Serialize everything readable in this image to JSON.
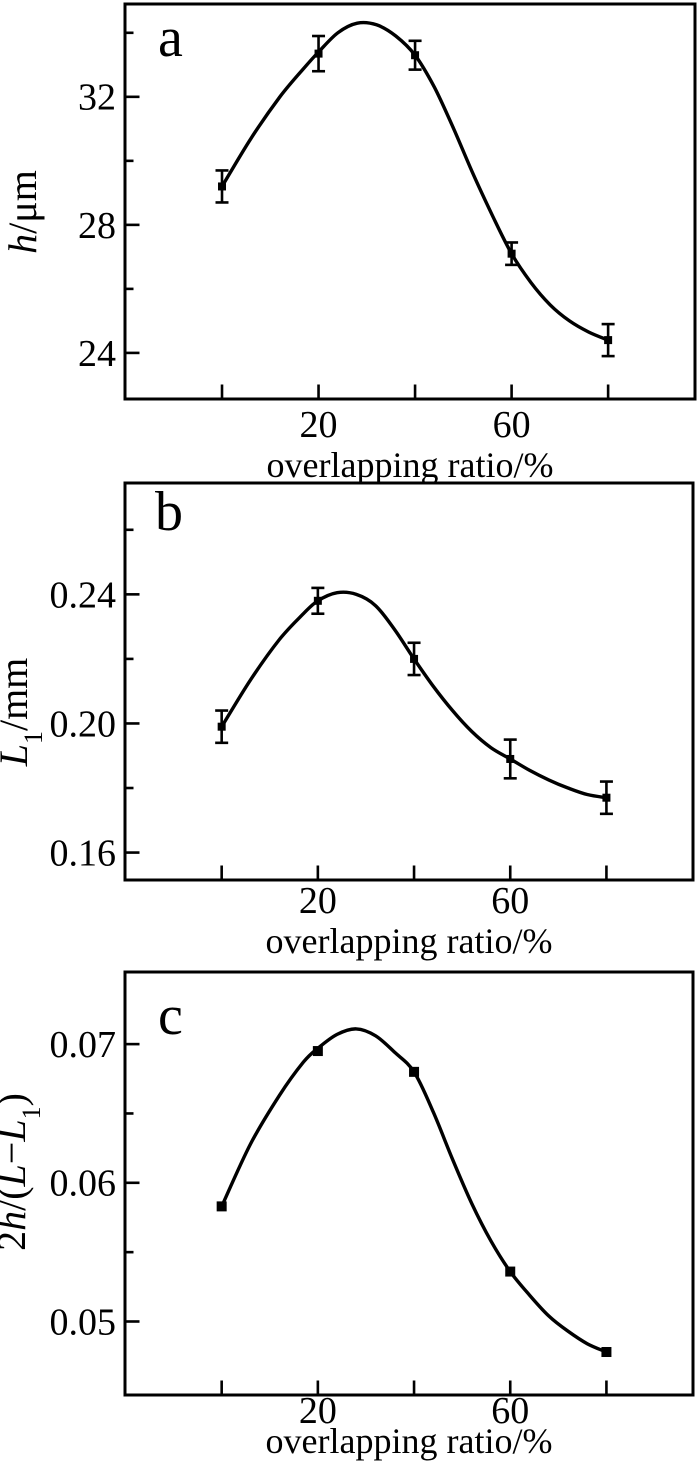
{
  "figure": {
    "background": "#ffffff",
    "ink_color": "#000000",
    "xlabel": "overlapping ratio/%",
    "x_axis_values": [
      0,
      20,
      40,
      60,
      80
    ],
    "x_axis_labeled_values": [
      20,
      60
    ]
  },
  "chart_data": [
    {
      "type": "line",
      "panel_label": "a",
      "xlabel": "overlapping ratio/%",
      "ylabel": "h/μm",
      "ylabel_parts": [
        [
          "i",
          "h"
        ],
        [
          "r",
          "/μm"
        ]
      ],
      "x": [
        0,
        20,
        40,
        60,
        80
      ],
      "y": [
        29.2,
        33.35,
        33.3,
        27.1,
        24.4
      ],
      "yerr": [
        0.5,
        0.55,
        0.45,
        0.35,
        0.5
      ],
      "marker": "square",
      "has_error_bars": true,
      "grid": false,
      "legend": null,
      "xlim": [
        -20.1,
        98
      ],
      "ylim": [
        22.56,
        34.9
      ],
      "yticks": [
        {
          "v": 24,
          "label": "24"
        },
        {
          "v": 28,
          "label": "28"
        },
        {
          "v": 32,
          "label": "32"
        }
      ],
      "yticks_minor": [
        26,
        30,
        34
      ],
      "xticks": [
        {
          "v": 0,
          "label": ""
        },
        {
          "v": 20,
          "label": "20"
        },
        {
          "v": 40,
          "label": ""
        },
        {
          "v": 60,
          "label": "60"
        },
        {
          "v": 80,
          "label": ""
        }
      ],
      "curve": [
        [
          0,
          29.2
        ],
        [
          6,
          30.7
        ],
        [
          12,
          32.0
        ],
        [
          17,
          32.9
        ],
        [
          20,
          33.4
        ],
        [
          24,
          34.0
        ],
        [
          28,
          34.3
        ],
        [
          32,
          34.25
        ],
        [
          36,
          33.9
        ],
        [
          40,
          33.3
        ],
        [
          44,
          32.3
        ],
        [
          48,
          31.0
        ],
        [
          52,
          29.6
        ],
        [
          56,
          28.3
        ],
        [
          60,
          27.1
        ],
        [
          64,
          26.2
        ],
        [
          68,
          25.5
        ],
        [
          72,
          25.0
        ],
        [
          76,
          24.65
        ],
        [
          80,
          24.4
        ]
      ]
    },
    {
      "type": "line",
      "panel_label": "b",
      "xlabel": "overlapping ratio/%",
      "ylabel": "L1/mm",
      "ylabel_parts": [
        [
          "i",
          "L"
        ],
        [
          "sub",
          "1"
        ],
        [
          "r",
          "/mm"
        ]
      ],
      "x": [
        0,
        20,
        40,
        60,
        80
      ],
      "y": [
        0.199,
        0.238,
        0.22,
        0.189,
        0.177
      ],
      "yerr": [
        0.005,
        0.004,
        0.005,
        0.006,
        0.005
      ],
      "marker": "square",
      "has_error_bars": true,
      "grid": false,
      "legend": null,
      "xlim": [
        -20.1,
        98
      ],
      "ylim": [
        0.1515,
        0.2745
      ],
      "yticks": [
        {
          "v": 0.16,
          "label": "0.16"
        },
        {
          "v": 0.2,
          "label": "0.20"
        },
        {
          "v": 0.24,
          "label": "0.24"
        }
      ],
      "yticks_minor": [
        0.18,
        0.22,
        0.26
      ],
      "xticks": [
        {
          "v": 0,
          "label": ""
        },
        {
          "v": 20,
          "label": "20"
        },
        {
          "v": 40,
          "label": ""
        },
        {
          "v": 60,
          "label": "60"
        },
        {
          "v": 80,
          "label": ""
        }
      ],
      "curve": [
        [
          0,
          0.199
        ],
        [
          6,
          0.2135
        ],
        [
          12,
          0.226
        ],
        [
          17,
          0.234
        ],
        [
          20,
          0.238
        ],
        [
          24,
          0.2405
        ],
        [
          28,
          0.24
        ],
        [
          32,
          0.2365
        ],
        [
          36,
          0.229
        ],
        [
          40,
          0.22
        ],
        [
          44,
          0.2115
        ],
        [
          48,
          0.204
        ],
        [
          52,
          0.1975
        ],
        [
          56,
          0.1925
        ],
        [
          60,
          0.189
        ],
        [
          64,
          0.1855
        ],
        [
          68,
          0.1825
        ],
        [
          72,
          0.18
        ],
        [
          76,
          0.178
        ],
        [
          80,
          0.177
        ]
      ]
    },
    {
      "type": "line",
      "panel_label": "c",
      "xlabel": "overlapping ratio/%",
      "ylabel": "2h/(L−L1)",
      "ylabel_parts": [
        [
          "r",
          "2"
        ],
        [
          "i",
          "h"
        ],
        [
          "r",
          "/("
        ],
        [
          "i",
          "L"
        ],
        [
          "r",
          "−"
        ],
        [
          "i",
          "L"
        ],
        [
          "sub",
          "1"
        ],
        [
          "r",
          ")"
        ]
      ],
      "x": [
        0,
        20,
        40,
        60,
        80
      ],
      "y": [
        0.0583,
        0.0695,
        0.068,
        0.0536,
        0.0478
      ],
      "yerr": null,
      "marker": "square",
      "has_error_bars": false,
      "grid": false,
      "legend": null,
      "xlim": [
        -20.1,
        98
      ],
      "ylim": [
        0.0447,
        0.0752
      ],
      "yticks": [
        {
          "v": 0.05,
          "label": "0.05"
        },
        {
          "v": 0.06,
          "label": "0.06"
        },
        {
          "v": 0.07,
          "label": "0.07"
        }
      ],
      "yticks_minor": [
        0.055,
        0.065
      ],
      "xticks": [
        {
          "v": 0,
          "label": ""
        },
        {
          "v": 20,
          "label": "20"
        },
        {
          "v": 40,
          "label": ""
        },
        {
          "v": 60,
          "label": "60"
        },
        {
          "v": 80,
          "label": ""
        }
      ],
      "curve": [
        [
          0,
          0.0583
        ],
        [
          6,
          0.0628
        ],
        [
          12,
          0.0663
        ],
        [
          17,
          0.0687
        ],
        [
          20,
          0.0697
        ],
        [
          24,
          0.0707
        ],
        [
          28,
          0.0711
        ],
        [
          32,
          0.0706
        ],
        [
          36,
          0.0694
        ],
        [
          40,
          0.068
        ],
        [
          44,
          0.0651
        ],
        [
          48,
          0.0617
        ],
        [
          52,
          0.0585
        ],
        [
          56,
          0.0558
        ],
        [
          60,
          0.0536
        ],
        [
          64,
          0.0519
        ],
        [
          68,
          0.0504
        ],
        [
          72,
          0.0493
        ],
        [
          76,
          0.0484
        ],
        [
          80,
          0.0478
        ]
      ]
    }
  ]
}
